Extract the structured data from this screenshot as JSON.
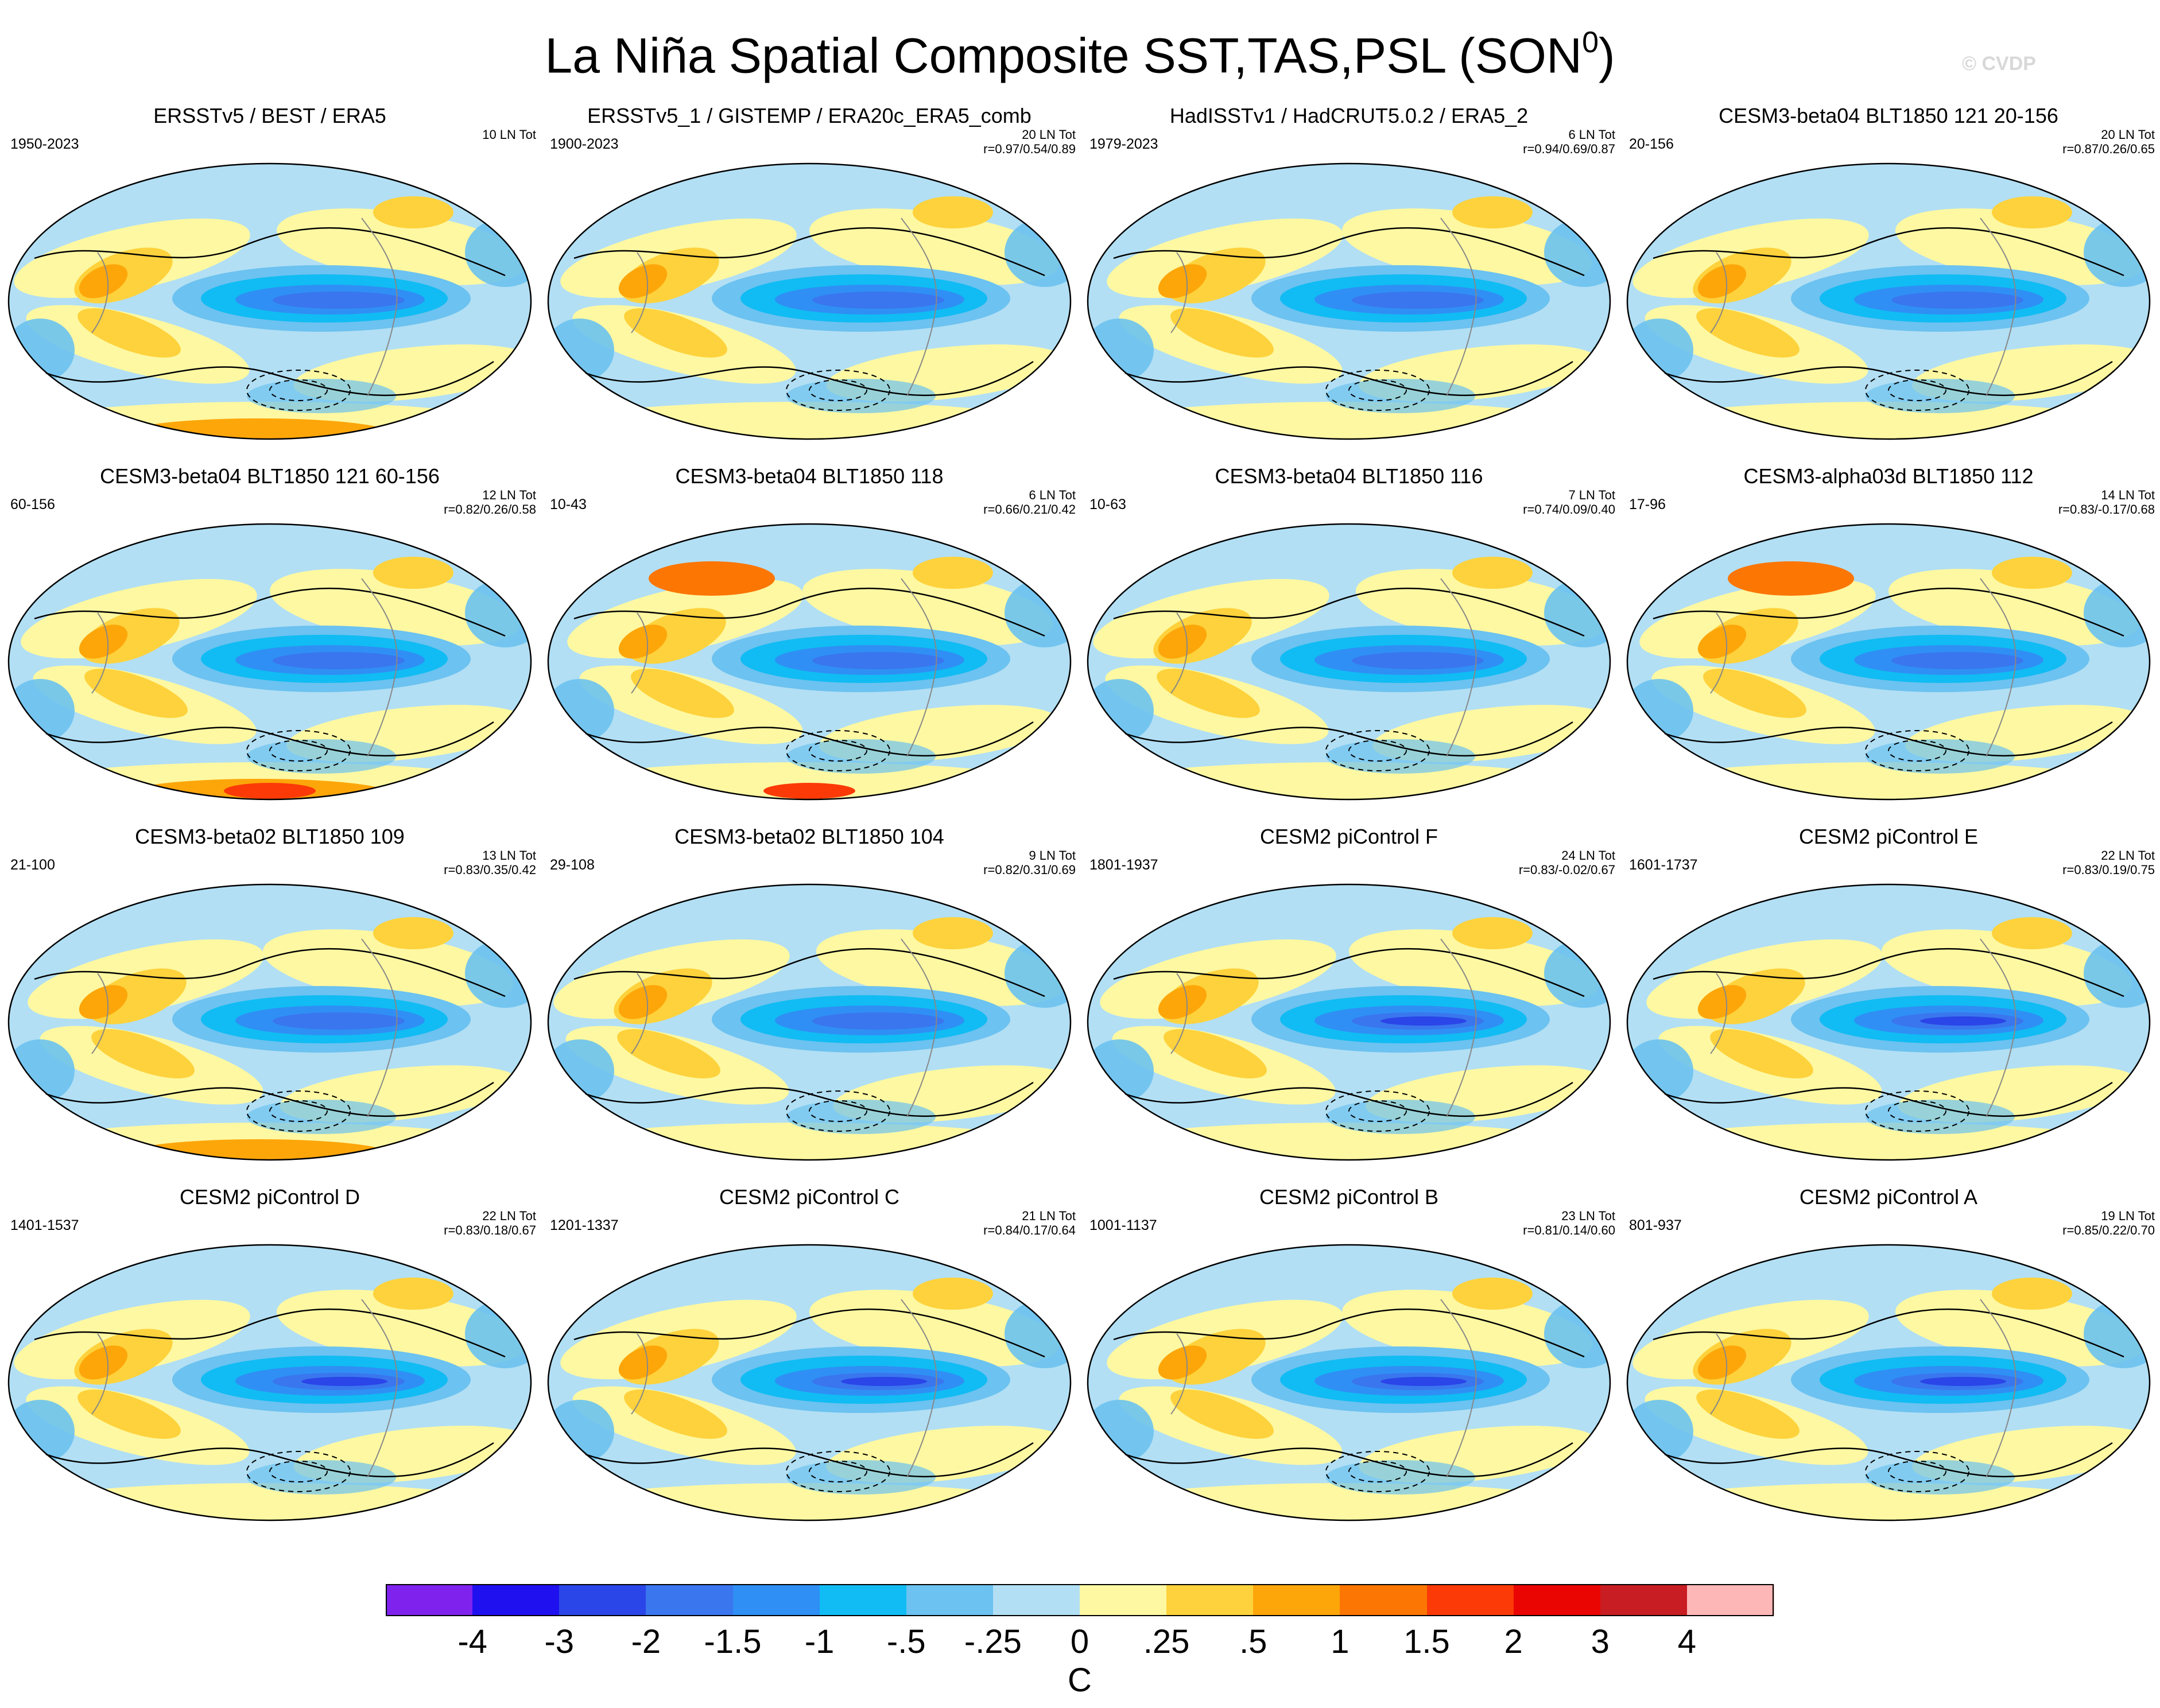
{
  "figure": {
    "title": "La Niña Spatial Composite SST,TAS,PSL (SON",
    "title_superscript": "0",
    "title_close": ")",
    "watermark": "© CVDP"
  },
  "panels": [
    {
      "title": "ERSSTv5 / BEST / ERA5",
      "years": "1950-2023",
      "count": "10 LN Tot",
      "corr": ""
    },
    {
      "title": "ERSSTv5_1 / GISTEMP / ERA20c_ERA5_comb",
      "years": "1900-2023",
      "count": "20 LN Tot",
      "corr": "r=0.97/0.54/0.89"
    },
    {
      "title": "HadISSTv1 / HadCRUT5.0.2 / ERA5_2",
      "years": "1979-2023",
      "count": "6 LN Tot",
      "corr": "r=0.94/0.69/0.87"
    },
    {
      "title": "CESM3-beta04 BLT1850 121 20-156",
      "years": "20-156",
      "count": "20 LN Tot",
      "corr": "r=0.87/0.26/0.65"
    },
    {
      "title": "CESM3-beta04 BLT1850 121 60-156",
      "years": "60-156",
      "count": "12 LN Tot",
      "corr": "r=0.82/0.26/0.58"
    },
    {
      "title": "CESM3-beta04 BLT1850 118",
      "years": "10-43",
      "count": "6 LN Tot",
      "corr": "r=0.66/0.21/0.42"
    },
    {
      "title": "CESM3-beta04 BLT1850 116",
      "years": "10-63",
      "count": "7 LN Tot",
      "corr": "r=0.74/0.09/0.40"
    },
    {
      "title": "CESM3-alpha03d BLT1850 112",
      "years": "17-96",
      "count": "14 LN Tot",
      "corr": "r=0.83/-0.17/0.68"
    },
    {
      "title": "CESM3-beta02 BLT1850 109",
      "years": "21-100",
      "count": "13 LN Tot",
      "corr": "r=0.83/0.35/0.42"
    },
    {
      "title": "CESM3-beta02 BLT1850 104",
      "years": "29-108",
      "count": "9 LN Tot",
      "corr": "r=0.82/0.31/0.69"
    },
    {
      "title": "CESM2 piControl F",
      "years": "1801-1937",
      "count": "24 LN Tot",
      "corr": "r=0.83/-0.02/0.67"
    },
    {
      "title": "CESM2 piControl E",
      "years": "1601-1737",
      "count": "22 LN Tot",
      "corr": "r=0.83/0.19/0.75"
    },
    {
      "title": "CESM2 piControl D",
      "years": "1401-1537",
      "count": "22 LN Tot",
      "corr": "r=0.83/0.18/0.67"
    },
    {
      "title": "CESM2 piControl C",
      "years": "1201-1337",
      "count": "21 LN Tot",
      "corr": "r=0.84/0.17/0.64"
    },
    {
      "title": "CESM2 piControl B",
      "years": "1001-1137",
      "count": "23 LN Tot",
      "corr": "r=0.81/0.14/0.60"
    },
    {
      "title": "CESM2 piControl A",
      "years": "801-937",
      "count": "19 LN Tot",
      "corr": "r=0.85/0.22/0.70"
    }
  ],
  "legend": {
    "units": "C",
    "labels": [
      "-4",
      "-3",
      "-2",
      "-1.5",
      "-1",
      "-.5",
      "-.25",
      "0",
      ".25",
      ".5",
      "1",
      "1.5",
      "2",
      "3",
      "4"
    ],
    "colors": [
      "#7f22ee",
      "#1f10f0",
      "#2a45e8",
      "#3a76ee",
      "#2f8ff5",
      "#10bcf3",
      "#6cc2f0",
      "#b2dff4",
      "#fef8a2",
      "#fed23c",
      "#fda60a",
      "#fc7604",
      "#fb3a07",
      "#ea0502",
      "#c81d22",
      "#feb7b7"
    ]
  }
}
